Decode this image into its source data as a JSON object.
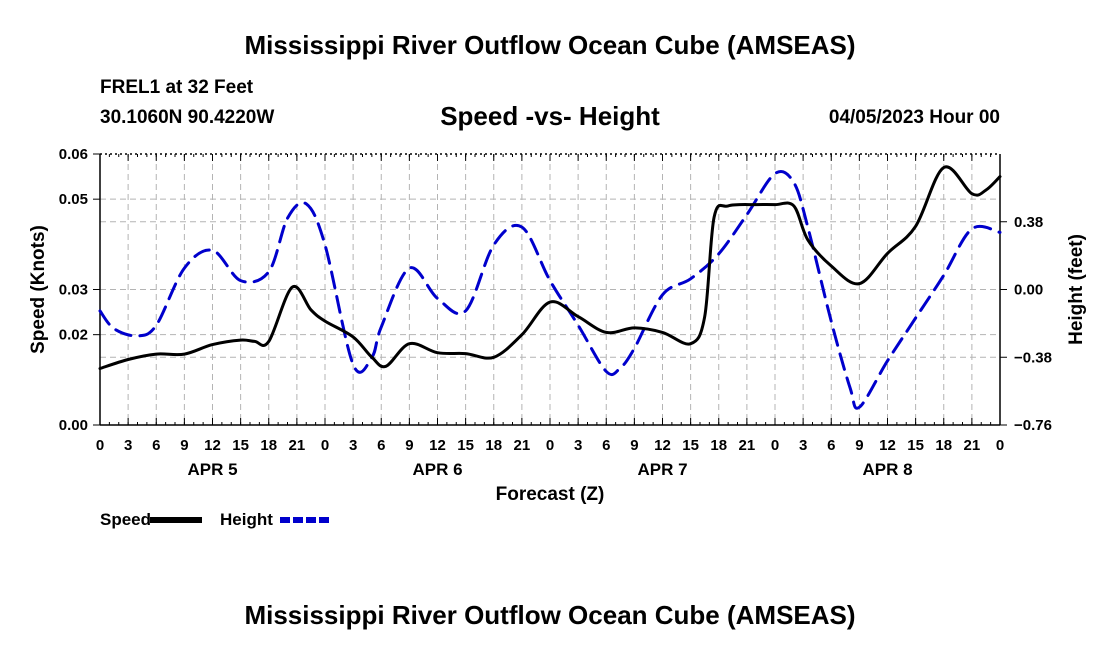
{
  "page": {
    "title_top": "Mississippi River Outflow Ocean Cube (AMSEAS)",
    "title_bottom": "Mississippi River Outflow Ocean Cube (AMSEAS)",
    "station": "FREL1 at 32 Feet",
    "coords": "30.1060N  90.4220W",
    "subtitle": "Speed -vs- Height",
    "timestamp": "04/05/2023 Hour 00"
  },
  "chart_data": {
    "type": "line",
    "title": "Speed -vs- Height",
    "xlabel": "Forecast (Z)",
    "ylabel": "Speed (Knots)",
    "y2label": "Height (feet)",
    "x_range_hours": [
      0,
      96
    ],
    "ylim": [
      0,
      0.06
    ],
    "y2lim": [
      -0.76,
      0.76
    ],
    "y_ticks": [
      0.0,
      0.02,
      0.03,
      0.05,
      0.06
    ],
    "y_tick_labels": [
      "0.00",
      "0.02",
      "0.03",
      "0.05",
      "0.06"
    ],
    "y2_ticks": [
      -0.76,
      -0.38,
      0.0,
      0.38
    ],
    "y2_tick_labels": [
      "−0.76",
      "−0.38",
      "0.00",
      "0.38"
    ],
    "x_tick_labels": [
      "0",
      "3",
      "6",
      "9",
      "12",
      "15",
      "18",
      "21",
      "0",
      "3",
      "6",
      "9",
      "12",
      "15",
      "18",
      "21",
      "0",
      "3",
      "6",
      "9",
      "12",
      "15",
      "18",
      "21",
      "0",
      "3",
      "6",
      "9",
      "12",
      "15",
      "18",
      "21",
      "0"
    ],
    "day_labels": [
      {
        "label": "APR 5",
        "hour": 12
      },
      {
        "label": "APR 6",
        "hour": 36
      },
      {
        "label": "APR 7",
        "hour": 60
      },
      {
        "label": "APR 8",
        "hour": 84
      }
    ],
    "legend": [
      {
        "name": "Speed",
        "color": "#000000",
        "dash": "solid"
      },
      {
        "name": "Height",
        "color": "#0000cc",
        "dash": "dashed"
      }
    ],
    "series": [
      {
        "name": "Speed",
        "axis": "left",
        "color": "#000000",
        "x": [
          0,
          3,
          6,
          9,
          12,
          15,
          16.5,
          18,
          20.5,
          22.5,
          24,
          27,
          29,
          30.5,
          33,
          36,
          39,
          42,
          45,
          48,
          51,
          54,
          57,
          60,
          63,
          64.5,
          65.5,
          67,
          70,
          72,
          74,
          75.5,
          78,
          81,
          84,
          87,
          90,
          93,
          94.5,
          96
        ],
        "values": [
          0.0125,
          0.0145,
          0.0157,
          0.0157,
          0.0178,
          0.0188,
          0.0185,
          0.0185,
          0.0305,
          0.0255,
          0.023,
          0.0195,
          0.015,
          0.013,
          0.018,
          0.016,
          0.0158,
          0.015,
          0.02,
          0.0272,
          0.024,
          0.0205,
          0.0215,
          0.0205,
          0.018,
          0.024,
          0.046,
          0.0485,
          0.0488,
          0.0488,
          0.0485,
          0.041,
          0.0352,
          0.0313,
          0.038,
          0.044,
          0.057,
          0.0512,
          0.052,
          0.055
        ]
      },
      {
        "name": "Height",
        "axis": "right",
        "color": "#0000cc",
        "x": [
          0,
          1.5,
          4,
          6,
          9,
          12,
          15,
          18,
          20,
          22,
          24,
          27,
          29,
          30,
          33,
          36,
          39,
          42,
          45,
          48,
          51,
          54,
          55.5,
          57,
          60,
          63,
          66,
          69,
          72,
          74,
          75.5,
          78,
          80,
          81,
          84,
          87,
          90,
          93,
          96
        ],
        "values": [
          -0.12,
          -0.22,
          -0.26,
          -0.2,
          0.12,
          0.22,
          0.05,
          0.1,
          0.4,
          0.48,
          0.25,
          -0.42,
          -0.38,
          -0.21,
          0.12,
          -0.05,
          -0.12,
          0.25,
          0.35,
          0.05,
          -0.2,
          -0.46,
          -0.44,
          -0.33,
          -0.03,
          0.06,
          0.2,
          0.42,
          0.65,
          0.6,
          0.35,
          -0.18,
          -0.55,
          -0.66,
          -0.4,
          -0.16,
          0.08,
          0.34,
          0.32
        ]
      }
    ]
  }
}
